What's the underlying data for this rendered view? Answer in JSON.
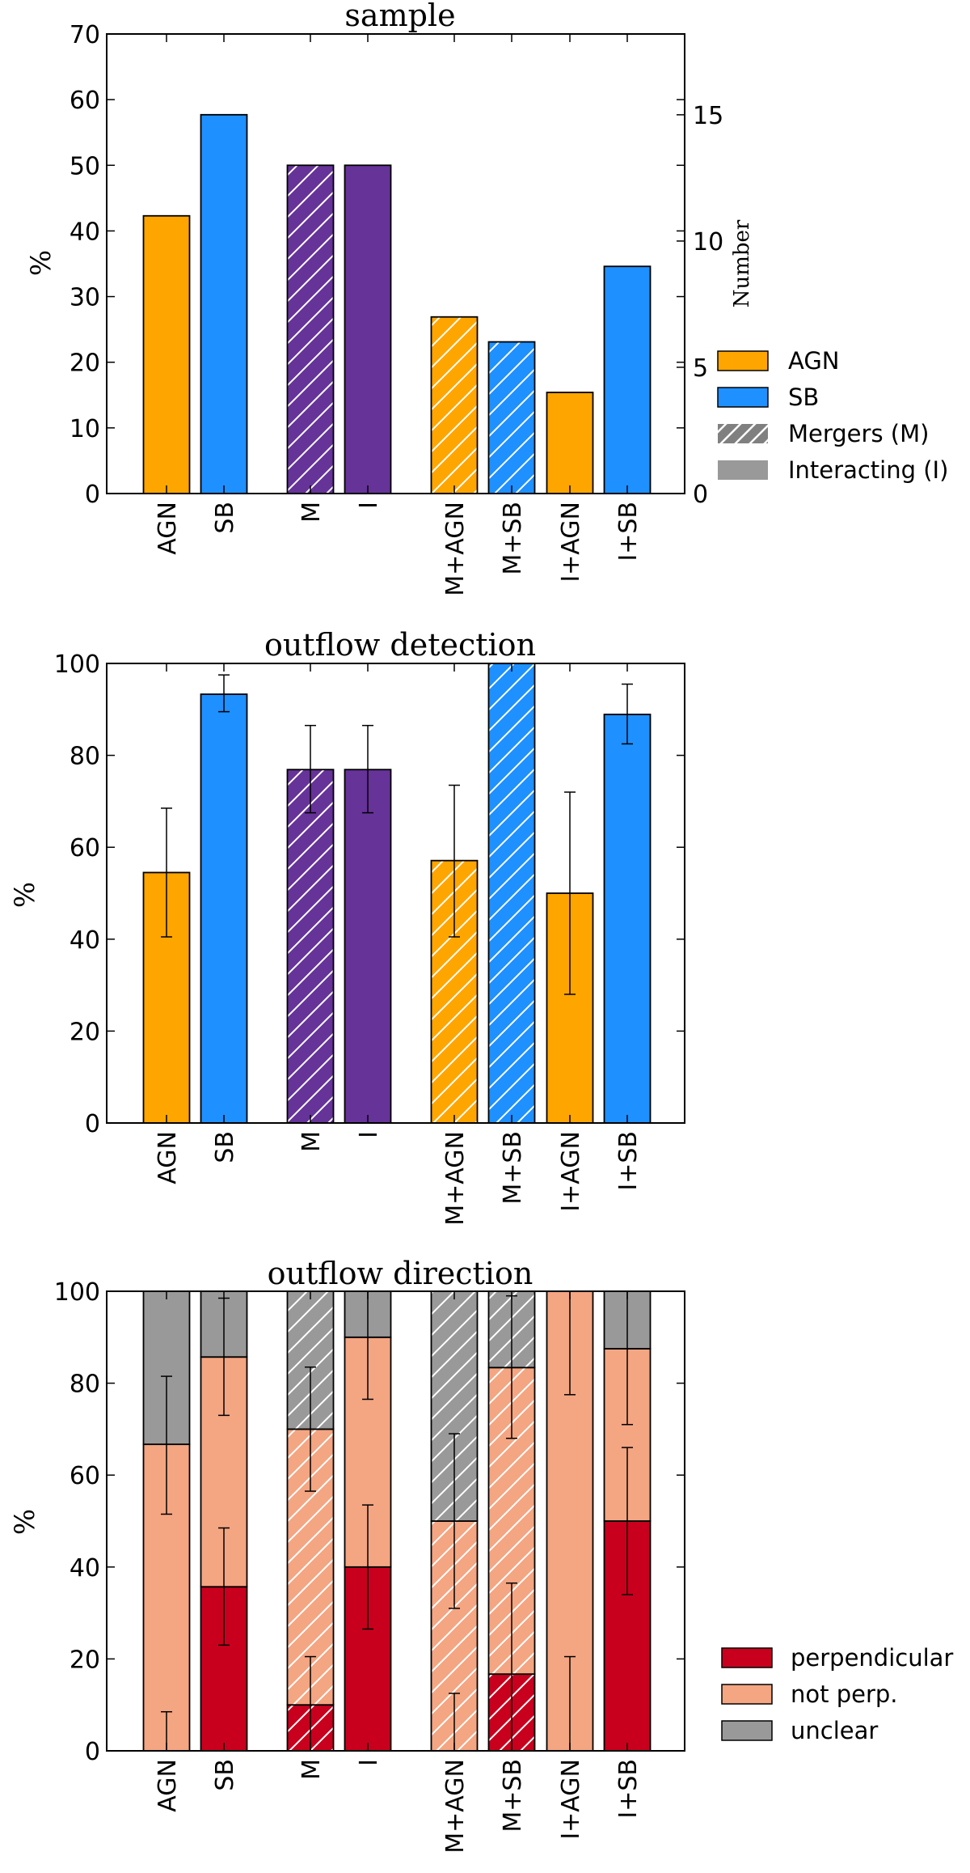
{
  "colors": {
    "agn": "#FFA500",
    "sb": "#1E90FF",
    "merger_interacting": "#663399",
    "perpendicular": "#C8001E",
    "not_perp": "#F4A582",
    "unclear": "#999999",
    "legend_hatch": "#808080"
  },
  "chart_data": [
    {
      "type": "bar",
      "title": "sample",
      "ylabel": "%",
      "ylim": [
        0,
        70
      ],
      "yticks": [
        "0",
        "10",
        "20",
        "30",
        "40",
        "50",
        "60",
        "70"
      ],
      "y2label": "Number",
      "y2lim": [
        0,
        18.2
      ],
      "y2ticks": [
        "0",
        "5",
        "10",
        "15"
      ],
      "categories": [
        "AGN",
        "SB",
        "M",
        "I",
        "M+AGN",
        "M+SB",
        "I+AGN",
        "I+SB"
      ],
      "values": [
        42.3,
        57.7,
        50,
        50,
        26.9,
        23.1,
        15.4,
        34.6
      ],
      "bar_colors": [
        "agn",
        "sb",
        "merger_interacting",
        "merger_interacting",
        "agn",
        "sb",
        "agn",
        "sb"
      ],
      "hatched": [
        false,
        false,
        true,
        false,
        true,
        true,
        false,
        false
      ],
      "legend": [
        "AGN",
        "SB",
        "Mergers (M)",
        "Interacting (I)"
      ]
    },
    {
      "type": "bar",
      "title": "outflow detection",
      "ylabel": "%",
      "ylim": [
        0,
        100
      ],
      "yticks": [
        "0",
        "20",
        "40",
        "60",
        "80",
        "100"
      ],
      "categories": [
        "AGN",
        "SB",
        "M",
        "I",
        "M+AGN",
        "M+SB",
        "I+AGN",
        "I+SB"
      ],
      "values": [
        54.5,
        93.3,
        76.9,
        76.9,
        57.1,
        100,
        50,
        88.9
      ],
      "error_low": [
        40.5,
        89.5,
        67.5,
        67.5,
        40.5,
        100,
        28,
        82.5
      ],
      "error_high": [
        68.5,
        97.5,
        86.5,
        86.5,
        73.5,
        100,
        72,
        95.5
      ],
      "bar_colors": [
        "agn",
        "sb",
        "merger_interacting",
        "merger_interacting",
        "agn",
        "sb",
        "agn",
        "sb"
      ],
      "hatched": [
        false,
        false,
        true,
        false,
        true,
        true,
        false,
        false
      ]
    },
    {
      "type": "bar",
      "stacked": true,
      "title": "outflow direction",
      "ylabel": "%",
      "ylim": [
        0,
        100
      ],
      "yticks": [
        "0",
        "20",
        "40",
        "60",
        "80",
        "100"
      ],
      "categories": [
        "AGN",
        "SB",
        "M",
        "I",
        "M+AGN",
        "M+SB",
        "I+AGN",
        "I+SB"
      ],
      "hatched": [
        false,
        false,
        true,
        false,
        true,
        true,
        false,
        false
      ],
      "series": [
        {
          "name": "perpendicular",
          "color": "perpendicular",
          "values": [
            0,
            35.7,
            10,
            40,
            0,
            16.7,
            0,
            50
          ],
          "error_low": [
            0,
            23,
            0,
            26.5,
            0,
            0,
            0,
            34
          ],
          "error_high": [
            8.5,
            48.5,
            20.5,
            53.5,
            12.5,
            36.5,
            20.5,
            66
          ]
        },
        {
          "name": "not perp.",
          "color": "not_perp",
          "values": [
            66.7,
            50,
            60,
            50,
            50,
            66.7,
            100,
            37.5
          ],
          "error_low": [
            51.5,
            73,
            56.5,
            76.5,
            31,
            68,
            77.5,
            71
          ],
          "error_high": [
            81.5,
            98.5,
            83.5,
            100,
            69,
            99,
            100,
            100
          ]
        },
        {
          "name": "unclear",
          "color": "unclear",
          "values": [
            33.3,
            14.3,
            30,
            10,
            50,
            16.6,
            0,
            12.5
          ]
        }
      ],
      "legend": [
        "perpendicular",
        "not perp.",
        "unclear"
      ]
    }
  ]
}
